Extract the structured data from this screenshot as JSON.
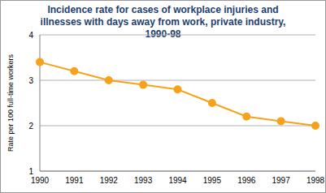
{
  "chart_data": {
    "type": "line",
    "title": "Incidence rate for cases of workplace injuries and illnesses with days away from work, private industry, 1990-98",
    "y_label": "Rate per 100 full-time workers",
    "categories": [
      "1990",
      "1991",
      "1992",
      "1993",
      "1994",
      "1995",
      "1996",
      "1997",
      "1998"
    ],
    "values": [
      3.4,
      3.2,
      3.0,
      2.9,
      2.8,
      2.5,
      2.2,
      2.1,
      2.0
    ],
    "color": "#f7a21b",
    "marker": "circle",
    "ylim": [
      1,
      4
    ],
    "yticks": [
      1,
      2,
      3,
      4
    ],
    "grid": true
  }
}
